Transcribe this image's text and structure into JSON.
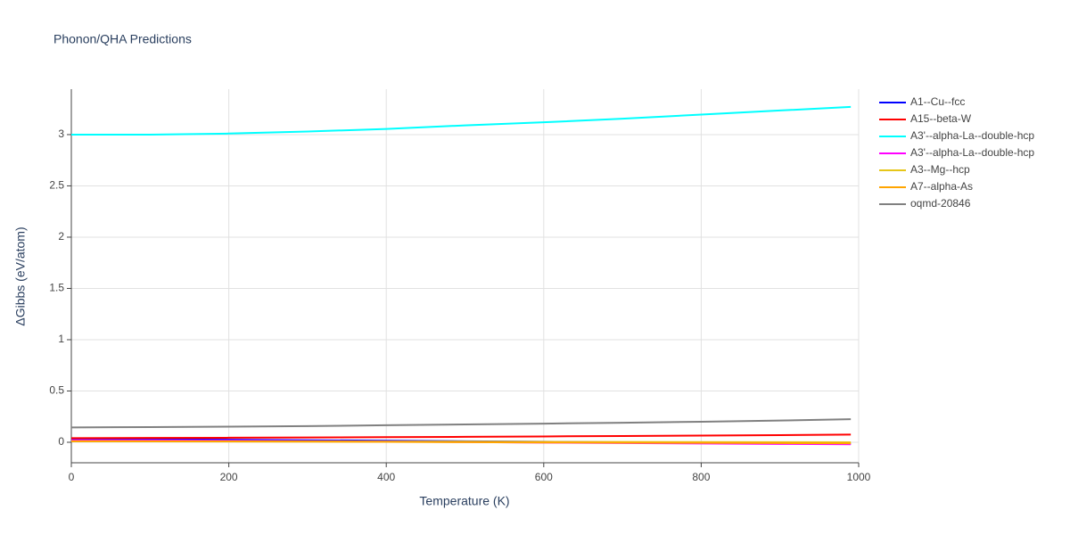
{
  "chart_data": {
    "type": "line",
    "title": "Phonon/QHA Predictions",
    "x_label": "Temperature (K)",
    "y_label": "ΔGibbs (eV/atom)",
    "x": [
      0,
      100,
      200,
      300,
      400,
      500,
      600,
      700,
      800,
      900,
      990
    ],
    "series": [
      {
        "name": "A1--Cu--fcc",
        "color": "#0000ff",
        "values": [
          0.03,
          0.028,
          0.025,
          0.02,
          0.015,
          0.01,
          0.005,
          0.0,
          -0.005,
          -0.01,
          -0.015
        ]
      },
      {
        "name": "A15--beta-W",
        "color": "#ff0000",
        "values": [
          0.04,
          0.042,
          0.044,
          0.047,
          0.05,
          0.053,
          0.057,
          0.061,
          0.065,
          0.07,
          0.075
        ]
      },
      {
        "name": "A3'--alpha-La--double-hcp",
        "color": "#00ffff",
        "values": [
          3.0,
          3.0,
          3.01,
          3.03,
          3.055,
          3.09,
          3.12,
          3.155,
          3.195,
          3.235,
          3.27
        ]
      },
      {
        "name": "A3'--alpha-La--double-hcp",
        "color": "#ff00ff",
        "values": [
          0.02,
          0.018,
          0.015,
          0.011,
          0.007,
          0.002,
          -0.003,
          -0.008,
          -0.012,
          -0.016,
          -0.02
        ]
      },
      {
        "name": "A3--Mg--hcp",
        "color": "#e6c619",
        "values": [
          0.01,
          0.01,
          0.009,
          0.008,
          0.007,
          0.006,
          0.004,
          0.003,
          0.002,
          0.001,
          0.0
        ]
      },
      {
        "name": "A7--alpha-As",
        "color": "#ffa500",
        "values": [
          0.01,
          0.009,
          0.008,
          0.006,
          0.004,
          0.001,
          -0.002,
          -0.004,
          -0.006,
          -0.008,
          -0.01
        ]
      },
      {
        "name": "oqmd-20846",
        "color": "#808080",
        "values": [
          0.145,
          0.148,
          0.152,
          0.158,
          0.166,
          0.174,
          0.182,
          0.19,
          0.2,
          0.212,
          0.225
        ]
      }
    ],
    "xlim": [
      0,
      1000
    ],
    "xticks": [
      0,
      200,
      400,
      600,
      800,
      1000
    ],
    "ylim": [
      -0.2,
      3.443
    ],
    "yticks": [
      0,
      0.5,
      1,
      1.5,
      2,
      2.5,
      3
    ],
    "grid": true
  }
}
